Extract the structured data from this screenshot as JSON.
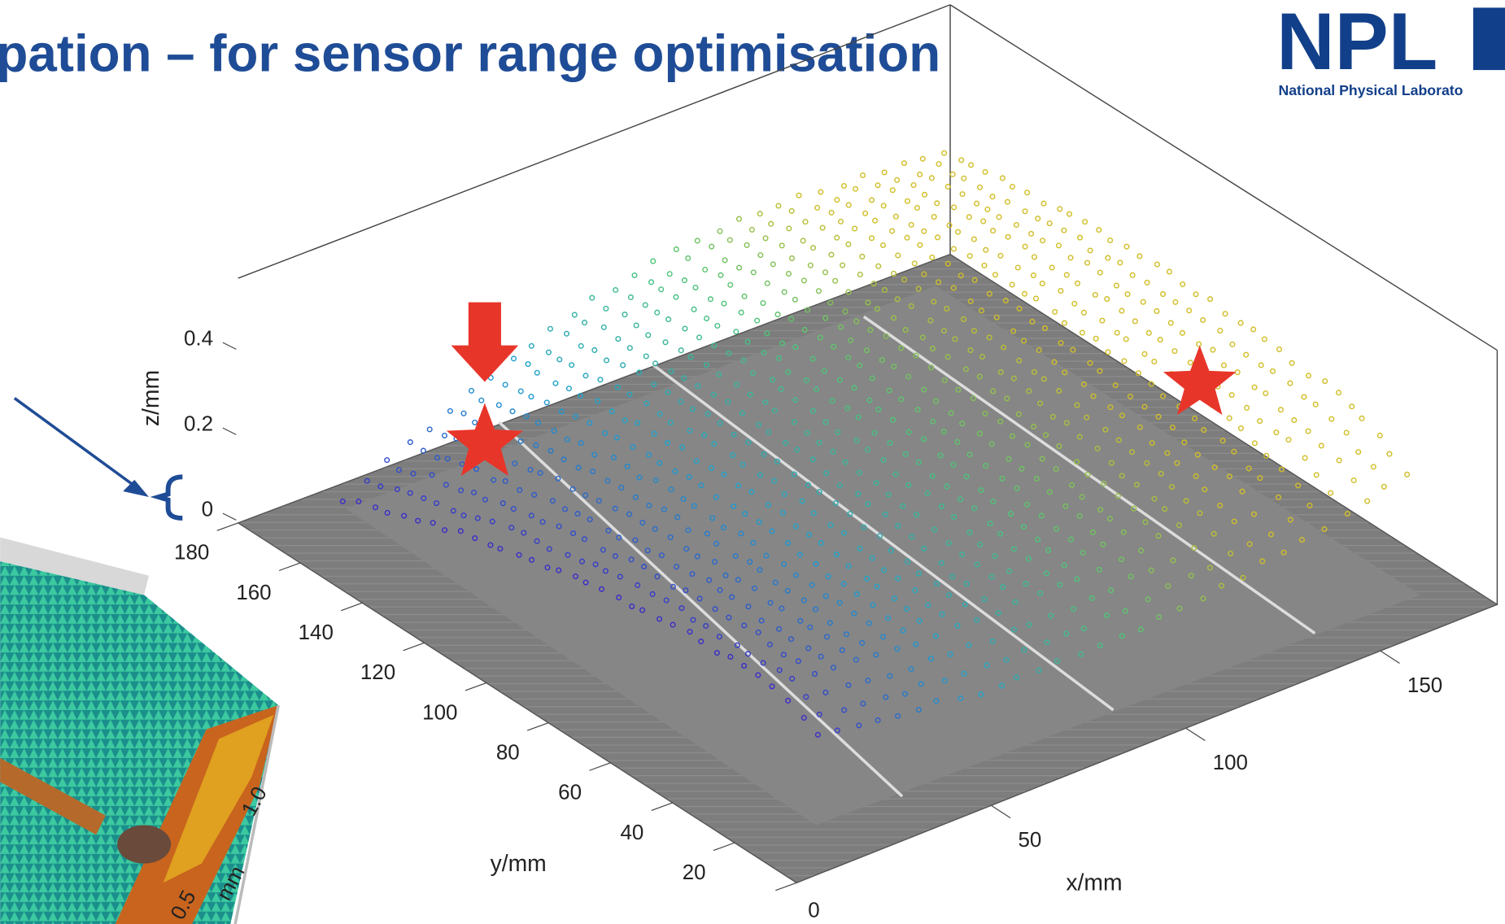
{
  "header": {
    "title": "pation – for sensor range optimisation",
    "logo": "NPL",
    "logo_subtitle": "National Physical Laborato"
  },
  "plot": {
    "zlabel": "z/mm",
    "ylabel": "y/mm",
    "xlabel": "x/mm",
    "zticks": [
      0,
      0.2,
      0.4
    ],
    "yticks": [
      180,
      160,
      140,
      120,
      100,
      80,
      60,
      40,
      20,
      0
    ],
    "xticks": [
      50,
      100,
      150
    ]
  },
  "inset": {
    "ticks": [
      {
        "value": 1,
        "label": "1.0"
      },
      {
        "value": 0.5,
        "label": "0.5"
      }
    ],
    "unit": "mm"
  }
}
